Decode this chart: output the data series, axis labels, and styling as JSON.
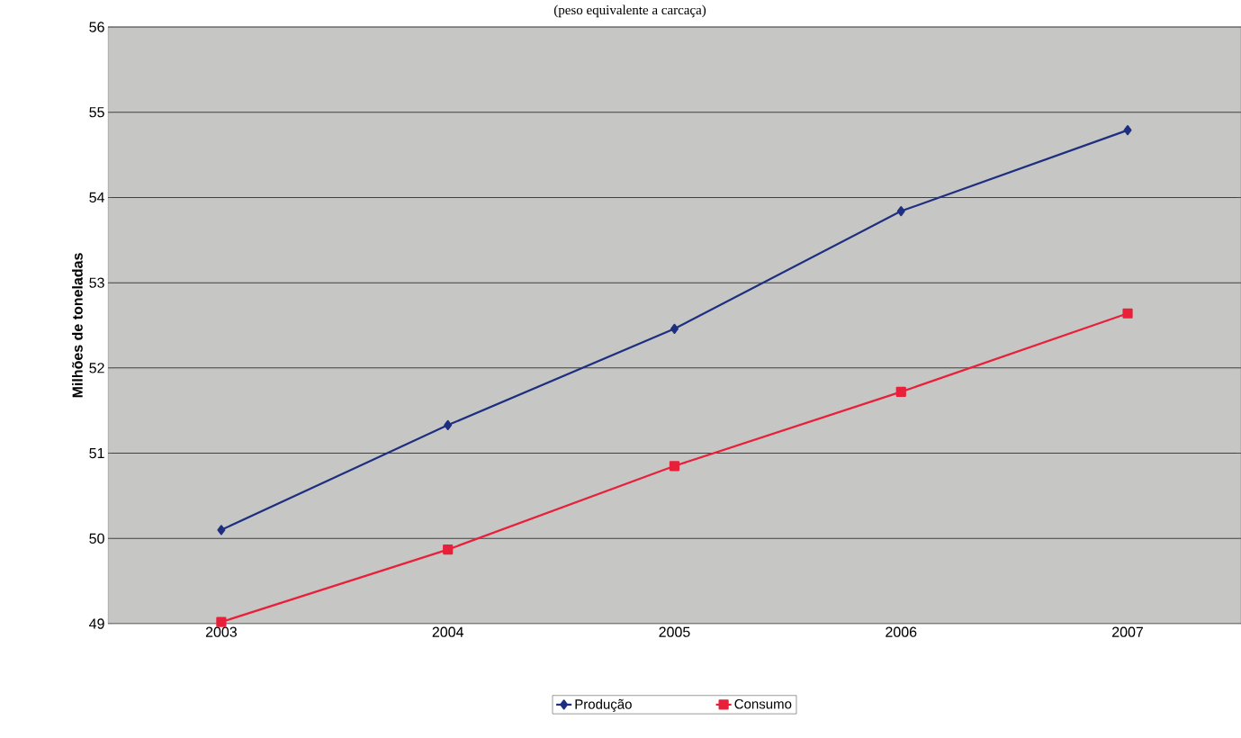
{
  "chart_data": {
    "type": "line",
    "subtitle": "(peso equivalente a carcaça)",
    "ylabel": "Milhões de toneladas",
    "categories": [
      "2003",
      "2004",
      "2005",
      "2006",
      "2007"
    ],
    "series": [
      {
        "name": "Produção",
        "color": "#1f2f80",
        "marker": "diamond",
        "values": [
          50.1,
          51.33,
          52.46,
          53.84,
          54.79
        ]
      },
      {
        "name": "Consumo",
        "color": "#e8203a",
        "marker": "square",
        "values": [
          49.02,
          49.87,
          50.85,
          51.72,
          52.64
        ]
      }
    ],
    "ylim": [
      49,
      56
    ],
    "yticks": [
      49,
      50,
      51,
      52,
      53,
      54,
      55,
      56
    ],
    "grid": "y",
    "legend": "bottom"
  }
}
